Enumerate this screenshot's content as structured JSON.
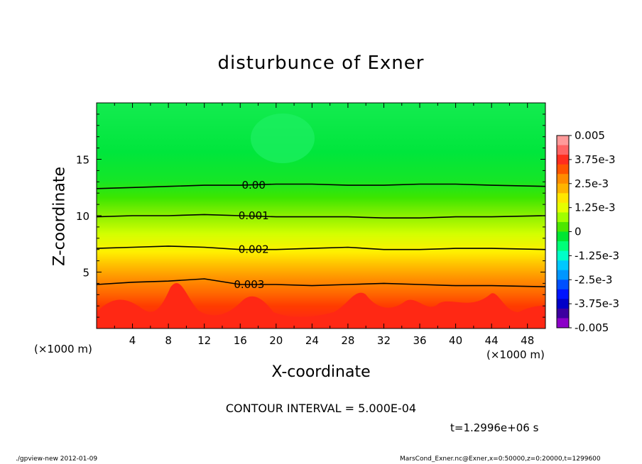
{
  "chart_data": {
    "type": "heatmap",
    "title": "disturbunce of Exner",
    "xlabel": "X-coordinate",
    "ylabel": "Z-coordinate",
    "x_unit_left": "(×1000 m)",
    "x_unit_right": "(×1000 m)",
    "xlim": [
      0,
      50
    ],
    "ylim": [
      0,
      20
    ],
    "x_ticks": [
      4,
      8,
      12,
      16,
      20,
      24,
      28,
      32,
      36,
      40,
      44,
      48
    ],
    "y_ticks": [
      5,
      10,
      15
    ],
    "colorbar": {
      "range": [
        -0.005,
        0.005
      ],
      "labels": [
        "0.005",
        "3.75e-3",
        "2.5e-3",
        "1.25e-3",
        "0",
        "-1.25e-3",
        "-2.5e-3",
        "-3.75e-3",
        "-0.005"
      ],
      "colors": [
        "#ff9a9a",
        "#ff6464",
        "#ff2d1e",
        "#ff5500",
        "#ff8c00",
        "#ffb400",
        "#ffe600",
        "#e6ff00",
        "#a0ff00",
        "#4ce600",
        "#00e632",
        "#00ff78",
        "#00ffc8",
        "#00c8ff",
        "#0096ff",
        "#0050ff",
        "#0014ff",
        "#0000c8",
        "#3c00a0",
        "#8c00c8"
      ]
    },
    "contours": [
      {
        "value": 0.0,
        "label": "0.00",
        "z": [
          12.4,
          12.5,
          12.6,
          12.7,
          12.7,
          12.8,
          12.8,
          12.7,
          12.7,
          12.8,
          12.8,
          12.7,
          12.6
        ]
      },
      {
        "value": 0.001,
        "label": "0.001",
        "z": [
          9.9,
          10.0,
          10.0,
          10.1,
          10.0,
          9.9,
          9.9,
          9.9,
          9.8,
          9.8,
          9.9,
          9.9,
          10.0
        ]
      },
      {
        "value": 0.002,
        "label": "0.002",
        "z": [
          7.1,
          7.2,
          7.3,
          7.2,
          7.0,
          7.0,
          7.1,
          7.2,
          7.0,
          7.0,
          7.1,
          7.1,
          7.0
        ]
      },
      {
        "value": 0.003,
        "label": "0.003",
        "z": [
          3.9,
          4.1,
          4.2,
          4.4,
          3.9,
          3.9,
          3.8,
          3.9,
          4.0,
          3.9,
          3.8,
          3.8,
          3.7
        ]
      }
    ],
    "contour_x": [
      0,
      4,
      8,
      12,
      16,
      20,
      24,
      28,
      32,
      36,
      40,
      44,
      50
    ],
    "contour_interval": "CONTOUR INTERVAL = 5.000E-04",
    "time": "t=1.2996e+06 s"
  },
  "footer": {
    "left": "./gpview-new  2012-01-09",
    "right": "MarsCond_Exner.nc@Exner,x=0:50000,z=0:20000,t=1299600"
  }
}
